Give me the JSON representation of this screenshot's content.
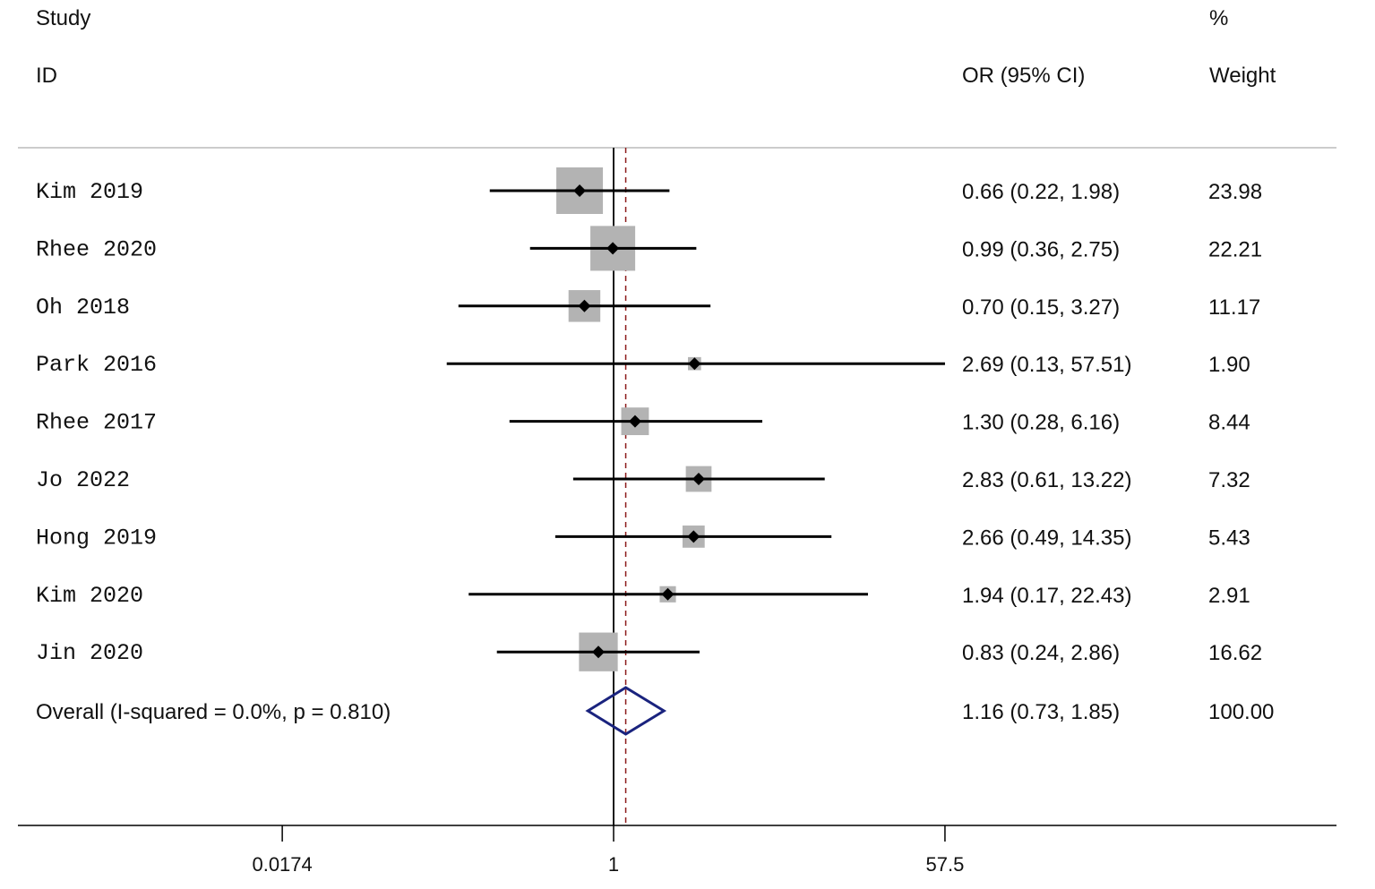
{
  "chart_data": {
    "type": "forest",
    "header": {
      "study_line1": "Study",
      "study_line2": "ID",
      "or_label": "OR (95% CI)",
      "weight_line1": "%",
      "weight_line2": "Weight"
    },
    "studies": [
      {
        "id": "Kim 2019",
        "or": 0.66,
        "lo": 0.22,
        "hi": 1.98,
        "or_text": "0.66 (0.22, 1.98)",
        "weight": 23.98,
        "weight_text": "23.98"
      },
      {
        "id": "Rhee 2020",
        "or": 0.99,
        "lo": 0.36,
        "hi": 2.75,
        "or_text": "0.99 (0.36, 2.75)",
        "weight": 22.21,
        "weight_text": "22.21"
      },
      {
        "id": "Oh 2018",
        "or": 0.7,
        "lo": 0.15,
        "hi": 3.27,
        "or_text": "0.70 (0.15, 3.27)",
        "weight": 11.17,
        "weight_text": "11.17"
      },
      {
        "id": "Park 2016",
        "or": 2.69,
        "lo": 0.13,
        "hi": 57.51,
        "or_text": "2.69 (0.13, 57.51)",
        "weight": 1.9,
        "weight_text": "1.90"
      },
      {
        "id": "Rhee 2017",
        "or": 1.3,
        "lo": 0.28,
        "hi": 6.16,
        "or_text": "1.30 (0.28, 6.16)",
        "weight": 8.44,
        "weight_text": "8.44"
      },
      {
        "id": "Jo 2022",
        "or": 2.83,
        "lo": 0.61,
        "hi": 13.22,
        "or_text": "2.83 (0.61, 13.22)",
        "weight": 7.32,
        "weight_text": "7.32"
      },
      {
        "id": "Hong 2019",
        "or": 2.66,
        "lo": 0.49,
        "hi": 14.35,
        "or_text": "2.66 (0.49, 14.35)",
        "weight": 5.43,
        "weight_text": "5.43"
      },
      {
        "id": "Kim 2020",
        "or": 1.94,
        "lo": 0.17,
        "hi": 22.43,
        "or_text": "1.94 (0.17, 22.43)",
        "weight": 2.91,
        "weight_text": "2.91"
      },
      {
        "id": "Jin 2020",
        "or": 0.83,
        "lo": 0.24,
        "hi": 2.86,
        "or_text": "0.83 (0.24, 2.86)",
        "weight": 16.62,
        "weight_text": "16.62"
      }
    ],
    "overall": {
      "label": "Overall  (I-squared = 0.0%, p = 0.810)",
      "or": 1.16,
      "lo": 0.73,
      "hi": 1.85,
      "or_text": "1.16 (0.73, 1.85)",
      "weight_text": "100.00"
    },
    "x_scale": "log",
    "x_ticks": [
      {
        "value": 0.0174,
        "label": "0.0174"
      },
      {
        "value": 1,
        "label": "1"
      },
      {
        "value": 57.5,
        "label": "57.5"
      }
    ],
    "null_line": 1,
    "colors": {
      "box": "#b3b3b3",
      "ci_line": "#000000",
      "diamond": "#1a237e",
      "overall_line": "#8b1a1a",
      "separator": "#bbbbbb"
    }
  }
}
